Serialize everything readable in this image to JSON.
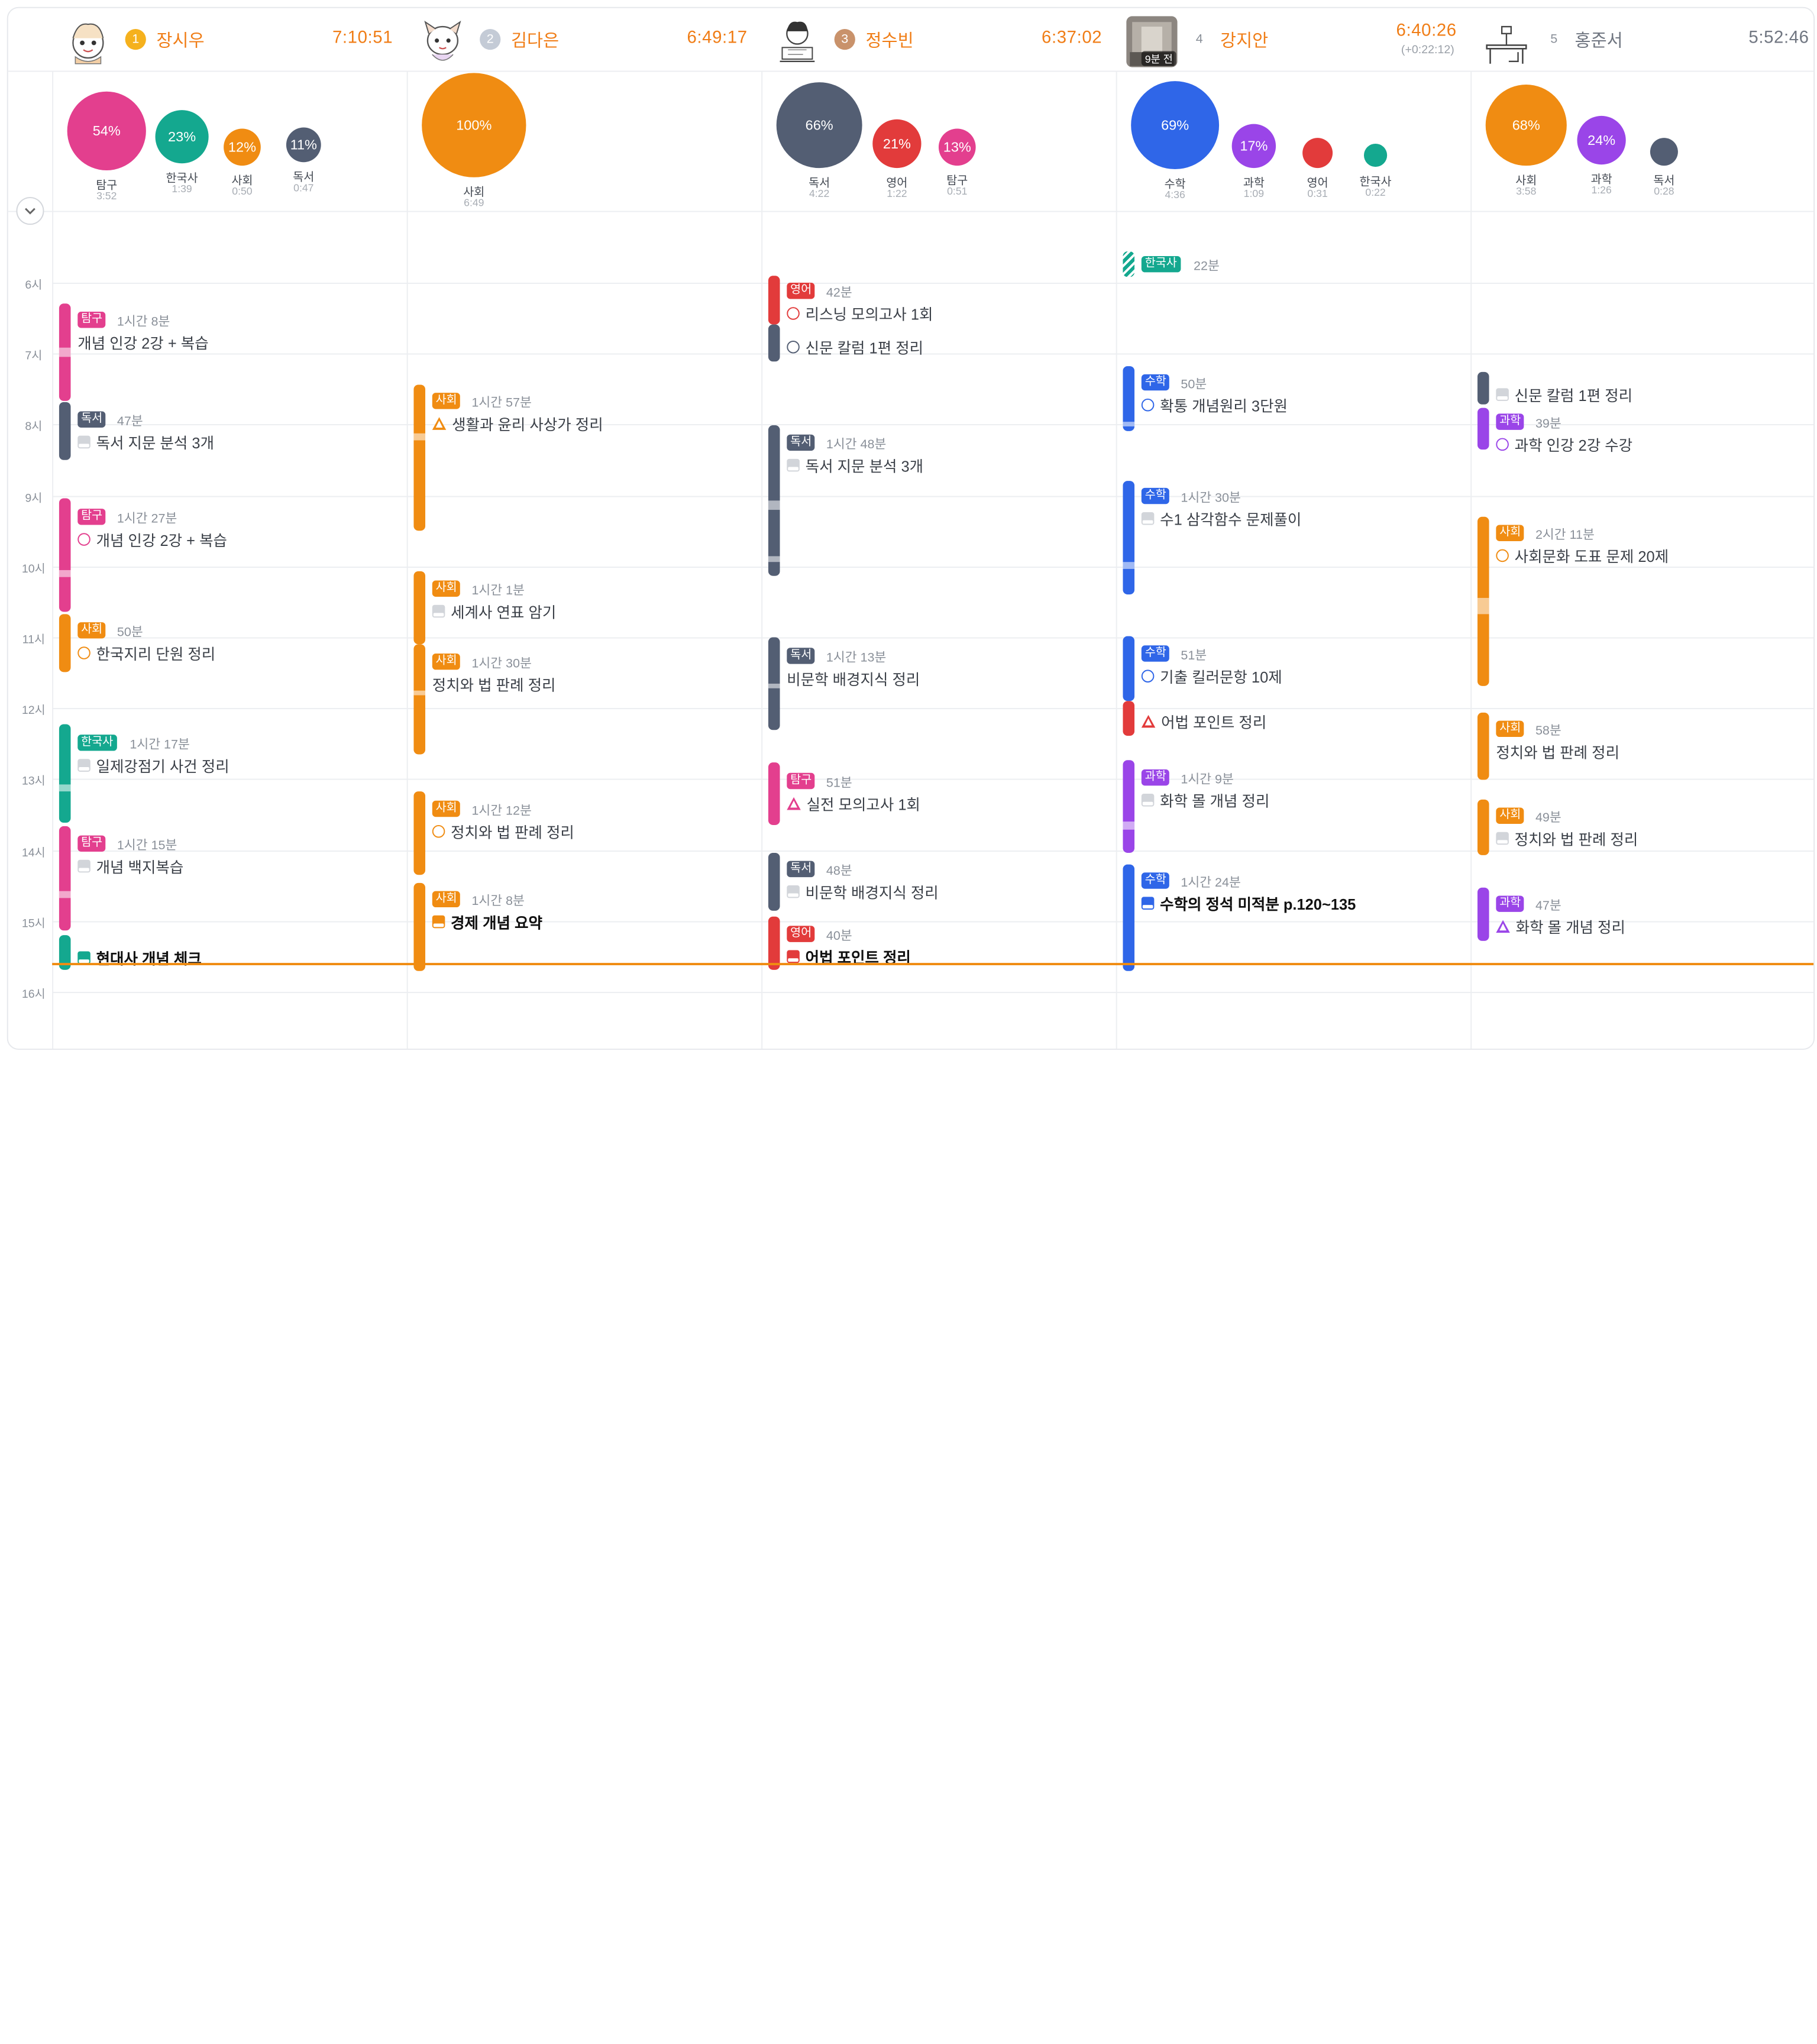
{
  "hours": [
    "6시",
    "7시",
    "8시",
    "9시",
    "10시",
    "11시",
    "12시",
    "13시",
    "14시",
    "15시",
    "16시"
  ],
  "colors": {
    "탐구": "#e33f8e",
    "한국사": "#14a88f",
    "사회": "#f08c12",
    "독서": "#535e73",
    "영어": "#e23b3b",
    "수학": "#2f66e8",
    "과학": "#9a45e8"
  },
  "users": [
    {
      "rank": "1",
      "name": "장시우",
      "time": "7:10:51",
      "avatar": "cartoon-girl-avatar"
    },
    {
      "rank": "2",
      "name": "김다은",
      "time": "6:49:17",
      "avatar": "cartoon-character-avatar"
    },
    {
      "rank": "3",
      "name": "정수빈",
      "time": "6:37:02",
      "avatar": "studying-student-avatar"
    },
    {
      "rank": "4",
      "name": "강지안",
      "time": "6:40:26",
      "sub": "(+0:22:12)",
      "avatar": "photo-avatar",
      "badge": "9분 전"
    },
    {
      "rank": "5",
      "name": "홍준서",
      "time": "5:52:46",
      "avatar": "desk-icon"
    }
  ],
  "bubbles": [
    [
      {
        "pct": "54%",
        "subject": "탐구",
        "time": "3:52"
      },
      {
        "pct": "23%",
        "subject": "한국사",
        "time": "1:39"
      },
      {
        "pct": "12%",
        "subject": "사회",
        "time": "0:50"
      },
      {
        "pct": "11%",
        "subject": "독서",
        "time": "0:47"
      }
    ],
    [
      {
        "pct": "100%",
        "subject": "사회",
        "time": "6:49"
      }
    ],
    [
      {
        "pct": "66%",
        "subject": "독서",
        "time": "4:22"
      },
      {
        "pct": "21%",
        "subject": "영어",
        "time": "1:22"
      },
      {
        "pct": "13%",
        "subject": "탐구",
        "time": "0:51"
      }
    ],
    [
      {
        "pct": "69%",
        "subject": "수학",
        "time": "4:36"
      },
      {
        "pct": "17%",
        "subject": "과학",
        "time": "1:09"
      },
      {
        "pct": "",
        "subject": "영어",
        "time": "0:31"
      },
      {
        "pct": "",
        "subject": "한국사",
        "time": "0:22"
      }
    ],
    [
      {
        "pct": "68%",
        "subject": "사회",
        "time": "3:58"
      },
      {
        "pct": "24%",
        "subject": "과학",
        "time": "1:26"
      },
      {
        "pct": "",
        "subject": "독서",
        "time": "0:28"
      }
    ]
  ],
  "tasks": [
    [
      {
        "subject": "탐구",
        "dur": "1시간 8분",
        "title": "개념 인강 2강 + 복습",
        "status": "none"
      },
      {
        "subject": "독서",
        "dur": "47분",
        "title": "독서 지문 분석 3개",
        "status": "book"
      },
      {
        "subject": "탐구",
        "dur": "1시간 27분",
        "title": "개념 인강 2강 + 복습",
        "status": "circle"
      },
      {
        "subject": "사회",
        "dur": "50분",
        "title": "한국지리 단원 정리",
        "status": "circle"
      },
      {
        "subject": "한국사",
        "dur": "1시간 17분",
        "title": "일제강점기 사건 정리",
        "status": "book"
      },
      {
        "subject": "탐구",
        "dur": "1시간 15분",
        "title": "개념 백지복습",
        "status": "book"
      },
      {
        "subject": "한국사",
        "dur": "",
        "title": "현대사 개념 체크",
        "status": "book-active"
      }
    ],
    [
      {
        "subject": "사회",
        "dur": "1시간 57분",
        "title": "생활과 윤리 사상가 정리",
        "status": "tri"
      },
      {
        "subject": "사회",
        "dur": "1시간 1분",
        "title": "세계사 연표 암기",
        "status": "book"
      },
      {
        "subject": "사회",
        "dur": "1시간 30분",
        "title": "정치와 법 판례 정리",
        "status": "none"
      },
      {
        "subject": "사회",
        "dur": "1시간 12분",
        "title": "정치와 법 판례 정리",
        "status": "circle"
      },
      {
        "subject": "사회",
        "dur": "1시간 8분",
        "title": "경제 개념 요약",
        "status": "book-active"
      }
    ],
    [
      {
        "subject": "영어",
        "dur": "42분",
        "title": "리스닝 모의고사 1회",
        "status": "circle"
      },
      {
        "subject": "독서",
        "dur": "",
        "title": "신문 칼럼 1편 정리",
        "status": "circle"
      },
      {
        "subject": "독서",
        "dur": "1시간 48분",
        "title": "독서 지문 분석 3개",
        "status": "book"
      },
      {
        "subject": "독서",
        "dur": "1시간 13분",
        "title": "비문학 배경지식 정리",
        "status": "none"
      },
      {
        "subject": "탐구",
        "dur": "51분",
        "title": "실전 모의고사 1회",
        "status": "tri"
      },
      {
        "subject": "독서",
        "dur": "48분",
        "title": "비문학 배경지식 정리",
        "status": "book"
      },
      {
        "subject": "영어",
        "dur": "40분",
        "title": "어법 포인트 정리",
        "status": "book-active"
      }
    ],
    [
      {
        "subject": "한국사",
        "dur": "22분",
        "title": "",
        "status": "none"
      },
      {
        "subject": "수학",
        "dur": "50분",
        "title": "확통 개념원리 3단원",
        "status": "circle"
      },
      {
        "subject": "수학",
        "dur": "1시간 30분",
        "title": "수1 삼각함수 문제풀이",
        "status": "book"
      },
      {
        "subject": "수학",
        "dur": "51분",
        "title": "기출 킬러문항 10제",
        "status": "circle"
      },
      {
        "subject": "영어",
        "dur": "",
        "title": "어법 포인트 정리",
        "status": "tri"
      },
      {
        "subject": "과학",
        "dur": "1시간 9분",
        "title": "화학 몰 개념 정리",
        "status": "book"
      },
      {
        "subject": "수학",
        "dur": "1시간 24분",
        "title": "수학의 정석 미적분 p.120~135",
        "status": "book-active"
      }
    ],
    [
      {
        "subject": "독서",
        "dur": "",
        "title": "신문 칼럼 1편 정리",
        "status": "book"
      },
      {
        "subject": "과학",
        "dur": "39분",
        "title": "과학 인강 2강 수강",
        "status": "circle"
      },
      {
        "subject": "사회",
        "dur": "2시간 11분",
        "title": "사회문화 도표 문제 20제",
        "status": "circle"
      },
      {
        "subject": "사회",
        "dur": "58분",
        "title": "정치와 법 판례 정리",
        "status": "none"
      },
      {
        "subject": "사회",
        "dur": "49분",
        "title": "정치와 법 판례 정리",
        "status": "book"
      },
      {
        "subject": "과학",
        "dur": "47분",
        "title": "화학 몰 개념 정리",
        "status": "tri"
      }
    ]
  ]
}
